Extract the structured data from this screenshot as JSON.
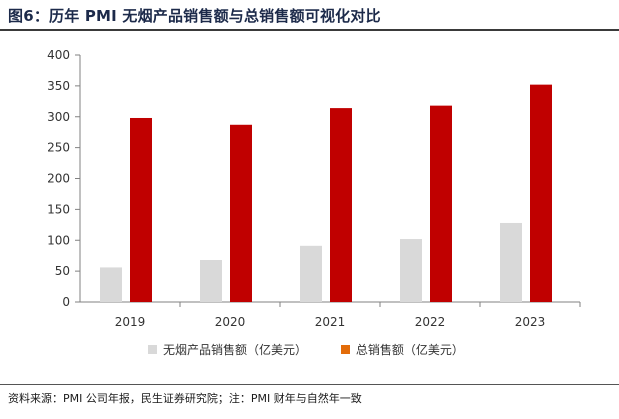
{
  "figure": {
    "title": "图6：历年 PMI 无烟产品销售额与总销售额可视化对比",
    "source": "资料来源：PMI 公司年报，民生证券研究院；注：PMI 财年与自然年一致"
  },
  "colors": {
    "smokefree": "#d9d9d9",
    "total": "#c00000",
    "legend_total_marker": "#e36c09",
    "axis": "#808080"
  },
  "chart_data": {
    "type": "bar",
    "title": "",
    "xlabel": "",
    "ylabel": "",
    "categories": [
      "2019",
      "2020",
      "2021",
      "2022",
      "2023"
    ],
    "series": [
      {
        "name": "无烟产品销售额（亿美元）",
        "values": [
          56,
          68,
          91,
          102,
          128
        ]
      },
      {
        "name": "总销售额（亿美元）",
        "values": [
          298,
          287,
          314,
          318,
          352
        ]
      }
    ],
    "ylim": [
      0,
      400
    ],
    "yticks": [
      0,
      50,
      100,
      150,
      200,
      250,
      300,
      350,
      400
    ],
    "grid": false,
    "legend_position": "bottom"
  }
}
